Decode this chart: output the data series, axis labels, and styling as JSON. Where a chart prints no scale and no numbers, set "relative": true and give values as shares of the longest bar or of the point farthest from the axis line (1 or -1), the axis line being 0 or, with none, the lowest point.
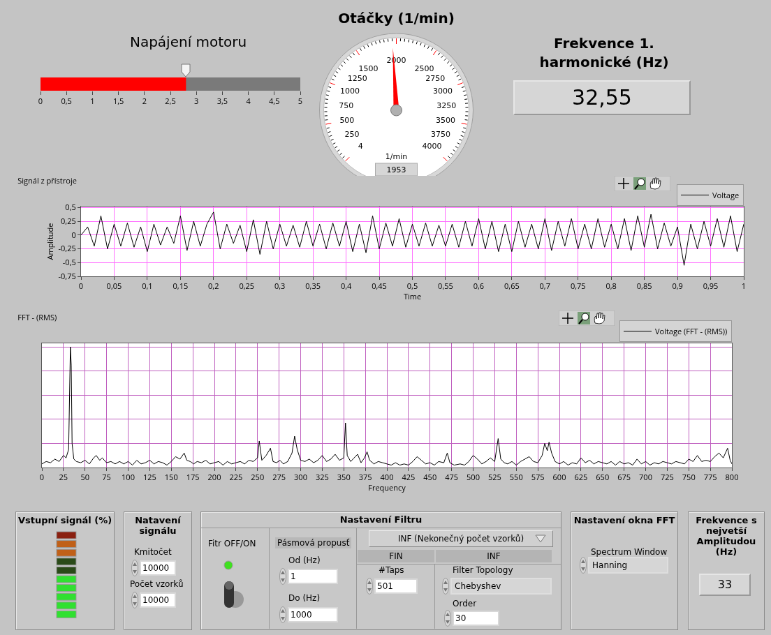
{
  "chart_data": [
    {
      "type": "bar",
      "orientation": "horizontal",
      "title": "Napájení motoru",
      "categories": [
        null
      ],
      "values": [
        2.8
      ],
      "color": "#ff0000",
      "xlim": [
        0,
        5
      ],
      "xticks": [
        0,
        {
          "value": 0.5,
          "label": "0,5"
        },
        1,
        {
          "value": 1.5,
          "label": "1,5"
        },
        2,
        {
          "value": 2.5,
          "label": "2,5"
        },
        3,
        {
          "value": 3.5,
          "label": "3,5"
        },
        4,
        {
          "value": 4.5,
          "label": "4,5"
        },
        5
      ],
      "tick_labels": "x"
    },
    {
      "type": "other",
      "title": "Otáčky (1/min)",
      "ylabel": "1/min",
      "values": [
        1953
      ],
      "data_labels": true,
      "annotations": [
        "4",
        "250",
        "500",
        "750",
        "1000",
        "1250",
        "1500",
        "2000",
        "2500",
        "2750",
        "3000",
        "3250",
        "3500",
        "3750",
        "4000"
      ]
    },
    {
      "type": "other",
      "title": "Frekvence 1. harmonické (Hz)",
      "annotations": [
        "32,55"
      ]
    },
    {
      "type": "line",
      "title": "Signál z přístroje",
      "xlabel": "Time",
      "ylabel": "Amplitude",
      "grid": true,
      "legend": "top right",
      "xlim": [
        0,
        1
      ],
      "ylim": [
        -0.75,
        0.52
      ],
      "xticks": [
        0,
        {
          "value": 0.05,
          "label": "0,05"
        },
        {
          "value": 0.1,
          "label": "0,1"
        },
        {
          "value": 0.15,
          "label": "0,15"
        },
        {
          "value": 0.2,
          "label": "0,2"
        },
        {
          "value": 0.25,
          "label": "0,25"
        },
        {
          "value": 0.3,
          "label": "0,3"
        },
        {
          "value": 0.35,
          "label": "0,35"
        },
        {
          "value": 0.4,
          "label": "0,4"
        },
        {
          "value": 0.45,
          "label": "0,45"
        },
        {
          "value": 0.5,
          "label": "0,5"
        },
        {
          "value": 0.55,
          "label": "0,55"
        },
        {
          "value": 0.6,
          "label": "0,6"
        },
        {
          "value": 0.65,
          "label": "0,65"
        },
        {
          "value": 0.7,
          "label": "0,7"
        },
        {
          "value": 0.75,
          "label": "0,75"
        },
        {
          "value": 0.8,
          "label": "0,8"
        },
        {
          "value": 0.85,
          "label": "0,85"
        },
        {
          "value": 0.9,
          "label": "0,9"
        },
        {
          "value": 0.95,
          "label": "0,95"
        },
        1
      ],
      "yticks": [
        {
          "value": 0.5,
          "label": "0,5"
        },
        {
          "value": 0.25,
          "label": "0,25"
        },
        0,
        {
          "value": -0.25,
          "label": "-0,25"
        },
        {
          "value": -0.5,
          "label": "-0,5"
        },
        {
          "value": -0.75,
          "label": "-0,75"
        }
      ],
      "x": [
        0,
        0.01,
        0.02,
        0.03,
        0.04,
        0.05,
        0.06,
        0.07,
        0.08,
        0.09,
        0.1,
        0.11,
        0.12,
        0.13,
        0.14,
        0.15,
        0.16,
        0.17,
        0.18,
        0.19,
        0.2,
        0.21,
        0.22,
        0.23,
        0.24,
        0.25,
        0.26,
        0.27,
        0.28,
        0.29,
        0.3,
        0.31,
        0.32,
        0.33,
        0.34,
        0.35,
        0.36,
        0.37,
        0.38,
        0.39,
        0.4,
        0.41,
        0.42,
        0.43,
        0.44,
        0.45,
        0.46,
        0.47,
        0.48,
        0.49,
        0.5,
        0.51,
        0.52,
        0.53,
        0.54,
        0.55,
        0.56,
        0.57,
        0.58,
        0.59,
        0.6,
        0.61,
        0.62,
        0.63,
        0.64,
        0.65,
        0.66,
        0.67,
        0.68,
        0.69,
        0.7,
        0.71,
        0.72,
        0.73,
        0.74,
        0.75,
        0.76,
        0.77,
        0.78,
        0.79,
        0.8,
        0.81,
        0.82,
        0.83,
        0.84,
        0.85,
        0.86,
        0.87,
        0.88,
        0.89,
        0.9,
        0.91,
        0.92,
        0.93,
        0.94,
        0.95,
        0.96,
        0.97,
        0.98,
        0.99,
        1
      ],
      "series": [
        {
          "name": "Voltage",
          "color": "#000000",
          "values": [
            0,
            0.15,
            -0.2,
            0.35,
            -0.25,
            0.2,
            -0.2,
            0.22,
            -0.22,
            0.15,
            -0.3,
            0.2,
            -0.18,
            0.15,
            -0.15,
            0.35,
            -0.28,
            0.25,
            -0.2,
            0.2,
            0.42,
            -0.25,
            0.2,
            -0.15,
            0.18,
            -0.3,
            0.28,
            -0.35,
            0.25,
            -0.25,
            0.2,
            -0.2,
            0.18,
            -0.22,
            0.25,
            -0.2,
            0.2,
            -0.25,
            0.22,
            -0.2,
            0.25,
            -0.3,
            0.2,
            -0.32,
            0.35,
            -0.25,
            0.22,
            -0.2,
            0.3,
            -0.22,
            0.2,
            -0.2,
            0.22,
            -0.2,
            0.18,
            -0.2,
            0.2,
            -0.22,
            0.25,
            -0.2,
            0.3,
            -0.25,
            0.25,
            -0.3,
            0.2,
            -0.3,
            0.25,
            -0.22,
            0.2,
            -0.25,
            0.3,
            -0.28,
            0.25,
            -0.2,
            0.3,
            -0.25,
            0.2,
            -0.25,
            0.3,
            -0.22,
            0.2,
            -0.25,
            0.3,
            -0.28,
            0.35,
            -0.22,
            0.38,
            -0.25,
            0.22,
            -0.2,
            0.15,
            -0.55,
            0.2,
            -0.25,
            0.25,
            -0.2,
            0.3,
            -0.22,
            0.35,
            -0.3,
            0.2
          ]
        }
      ]
    },
    {
      "type": "line",
      "relative": true,
      "title": "FFT - (RMS)",
      "xlabel": "Frequency",
      "grid": true,
      "legend": "top right",
      "tick_labels": "x",
      "xlim": [
        0,
        800
      ],
      "xticks": [
        0,
        25,
        50,
        75,
        100,
        125,
        150,
        175,
        200,
        225,
        250,
        275,
        300,
        325,
        350,
        375,
        400,
        425,
        450,
        475,
        500,
        525,
        550,
        575,
        600,
        625,
        650,
        675,
        700,
        725,
        750,
        775,
        800
      ],
      "x": [
        0,
        5,
        10,
        15,
        20,
        25,
        28,
        31,
        33,
        34,
        35,
        37,
        40,
        45,
        50,
        55,
        60,
        63,
        67,
        70,
        75,
        80,
        85,
        90,
        95,
        100,
        105,
        110,
        115,
        120,
        125,
        130,
        135,
        140,
        145,
        150,
        155,
        160,
        165,
        168,
        172,
        176,
        180,
        185,
        190,
        195,
        200,
        205,
        210,
        215,
        220,
        225,
        230,
        235,
        240,
        245,
        250,
        252,
        255,
        260,
        265,
        268,
        272,
        276,
        280,
        285,
        290,
        293,
        296,
        300,
        305,
        310,
        315,
        320,
        325,
        330,
        335,
        340,
        345,
        350,
        352,
        354,
        358,
        362,
        366,
        370,
        374,
        377,
        380,
        385,
        390,
        395,
        400,
        405,
        410,
        415,
        420,
        425,
        430,
        435,
        440,
        445,
        450,
        455,
        460,
        466,
        470,
        473,
        478,
        485,
        490,
        495,
        500,
        505,
        510,
        515,
        520,
        525,
        529,
        532,
        536,
        540,
        545,
        550,
        555,
        560,
        565,
        570,
        575,
        580,
        583,
        586,
        588,
        591,
        595,
        600,
        605,
        610,
        615,
        620,
        625,
        630,
        635,
        640,
        645,
        650,
        655,
        660,
        665,
        670,
        675,
        680,
        685,
        690,
        695,
        700,
        705,
        710,
        715,
        720,
        725,
        730,
        735,
        740,
        745,
        750,
        755,
        760,
        765,
        770,
        775,
        780,
        785,
        790,
        795,
        798,
        800
      ],
      "series": [
        {
          "name": "Voltage (FFT - (RMS))",
          "color": "#000000",
          "values": [
            0.03,
            0.05,
            0.04,
            0.07,
            0.05,
            0.1,
            0.08,
            0.15,
            1,
            0.85,
            0.2,
            0.07,
            0.05,
            0.04,
            0.06,
            0.03,
            0.08,
            0.1,
            0.06,
            0.08,
            0.04,
            0.05,
            0.03,
            0.05,
            0.03,
            0.05,
            0.02,
            0.06,
            0.03,
            0.04,
            0.06,
            0.03,
            0.05,
            0.04,
            0.02,
            0.05,
            0.09,
            0.07,
            0.12,
            0.06,
            0.05,
            0.03,
            0.05,
            0.04,
            0.06,
            0.03,
            0.04,
            0.05,
            0.02,
            0.05,
            0.03,
            0.04,
            0.05,
            0.03,
            0.06,
            0.05,
            0.08,
            0.22,
            0.06,
            0.1,
            0.16,
            0.05,
            0.04,
            0.06,
            0.03,
            0.05,
            0.12,
            0.26,
            0.15,
            0.06,
            0.05,
            0.07,
            0.04,
            0.06,
            0.1,
            0.05,
            0.07,
            0.11,
            0.06,
            0.08,
            0.37,
            0.1,
            0.05,
            0.08,
            0.11,
            0.04,
            0.08,
            0.13,
            0.06,
            0.03,
            0.05,
            0.04,
            0.03,
            0.02,
            0.04,
            0.02,
            0.03,
            0.02,
            0.05,
            0.09,
            0.06,
            0.03,
            0.04,
            0.02,
            0.05,
            0.04,
            0.12,
            0.04,
            0.02,
            0.03,
            0.02,
            0.05,
            0.1,
            0.07,
            0.03,
            0.05,
            0.08,
            0.05,
            0.24,
            0.07,
            0.04,
            0.03,
            0.05,
            0.02,
            0.05,
            0.07,
            0.09,
            0.05,
            0.04,
            0.1,
            0.2,
            0.14,
            0.21,
            0.12,
            0.05,
            0.03,
            0.05,
            0.02,
            0.04,
            0.03,
            0.08,
            0.04,
            0.06,
            0.03,
            0.05,
            0.04,
            0.03,
            0.05,
            0.02,
            0.05,
            0.03,
            0.04,
            0.02,
            0.07,
            0.03,
            0.05,
            0.02,
            0.04,
            0.03,
            0.05,
            0.04,
            0.03,
            0.05,
            0.04,
            0.03,
            0.07,
            0.05,
            0.1,
            0.05,
            0.06,
            0.05,
            0.09,
            0.12,
            0.08,
            0.16,
            0.06,
            0.03
          ]
        }
      ]
    },
    {
      "type": "other",
      "title": "Vstupní signál (%)"
    },
    {
      "type": "other",
      "title": "Natavení signálu",
      "annotations": [
        "Kmitočet",
        "10000",
        "Počet vzorků",
        "10000"
      ]
    },
    {
      "type": "other",
      "title": "Nastavení Filtru",
      "annotations": [
        "Fitr OFF/ON",
        "Pásmová propusť",
        "Od (Hz)",
        "1",
        "Do (Hz)",
        "1000",
        "INF (Nekonečný počet vzorků)",
        "FIN",
        "INF",
        "#Taps",
        "501",
        "Filter Topology",
        "Chebyshev",
        "Order",
        "30"
      ]
    },
    {
      "type": "other",
      "title": "Nastavení okna FFT",
      "annotations": [
        "Spectrum Window",
        "Hanning"
      ]
    },
    {
      "type": "other",
      "title": "Frekvence s nejvetší Amplitudou (Hz)",
      "annotations": [
        "33"
      ]
    }
  ]
}
